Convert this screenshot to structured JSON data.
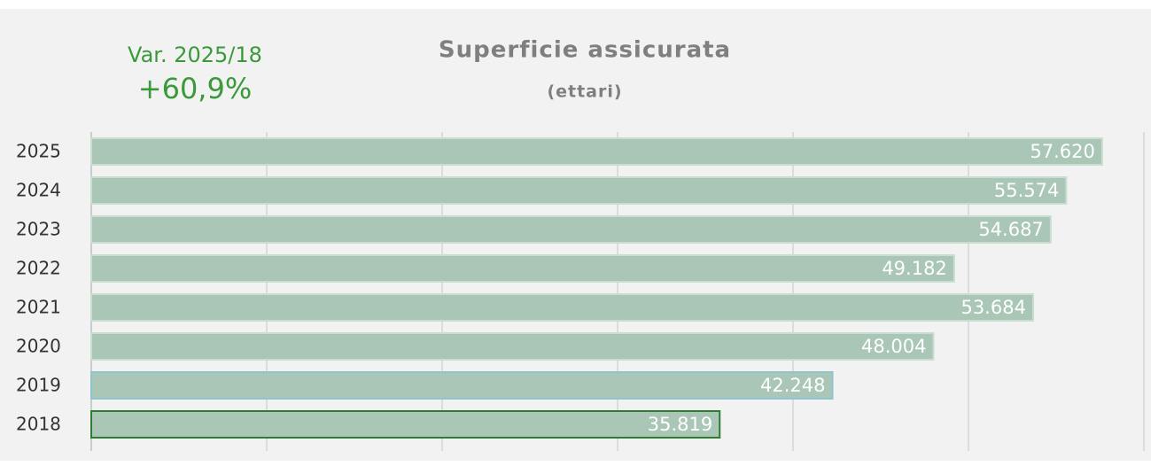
{
  "chart_data": {
    "type": "barh",
    "title": "Superficie assicurata",
    "subtitle": "(ettari)",
    "annotations": [
      "Var. 2025/18",
      "+60,9%"
    ],
    "categories": [
      "2025",
      "2024",
      "2023",
      "2022",
      "2021",
      "2020",
      "2019",
      "2018"
    ],
    "values": [
      57620,
      55574,
      54687,
      49182,
      53684,
      48004,
      42248,
      35819
    ],
    "value_labels": [
      "57.620",
      "55.574",
      "54.687",
      "49.182",
      "53.684",
      "48.004",
      "42.248",
      "35.819"
    ],
    "color": "#a9c6b6",
    "edgecolors": [
      "#c9ddd0",
      "#c9ddd0",
      "#c9ddd0",
      "#c9ddd0",
      "#c9ddd0",
      "#c9ddd0",
      "#8fc3d0",
      "#2e7d32"
    ],
    "xlim": [
      0,
      60000
    ],
    "xticks": [
      0,
      10000,
      20000,
      30000,
      40000,
      50000,
      60000
    ],
    "grid": true
  }
}
